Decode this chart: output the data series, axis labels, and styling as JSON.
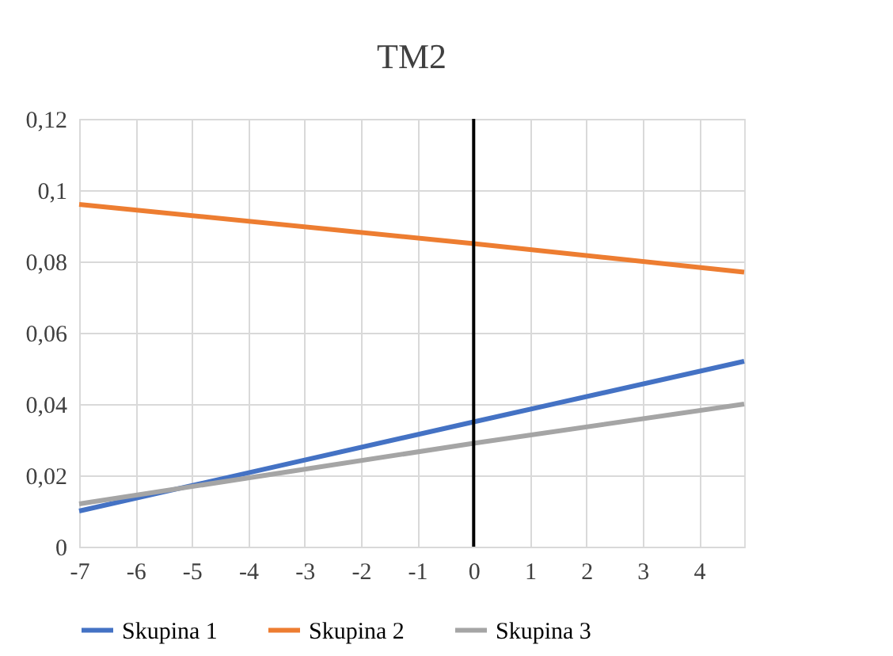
{
  "chart_data": {
    "type": "line",
    "title": "TM2",
    "x": [
      -7,
      0,
      4.8
    ],
    "series": [
      {
        "name": "Skupina 1",
        "color": "#4472c4",
        "values": [
          0.01,
          0.035,
          0.052
        ]
      },
      {
        "name": "Skupina 2",
        "color": "#ed7d31",
        "values": [
          0.096,
          0.085,
          0.077
        ]
      },
      {
        "name": "Skupina 3",
        "color": "#a5a5a5",
        "values": [
          0.012,
          0.029,
          0.04
        ]
      }
    ],
    "xlim": [
      -7,
      4.8
    ],
    "xticks": [
      -7,
      -6,
      -5,
      -4,
      -3,
      -2,
      -1,
      0,
      1,
      2,
      3,
      4
    ],
    "ylim": [
      0,
      0.12
    ],
    "yticks": [
      {
        "value": 0,
        "label": "0"
      },
      {
        "value": 0.02,
        "label": "0,02"
      },
      {
        "value": 0.04,
        "label": "0,04"
      },
      {
        "value": 0.06,
        "label": "0,06"
      },
      {
        "value": 0.08,
        "label": "0,08"
      },
      {
        "value": 0.1,
        "label": "0,1"
      },
      {
        "value": 0.12,
        "label": "0,12"
      }
    ],
    "ref_lines": [
      {
        "axis": "x",
        "value": 0,
        "color": "#000000"
      }
    ],
    "grid": true,
    "legend": "bottom",
    "marker": "none",
    "line_style": "solid"
  }
}
